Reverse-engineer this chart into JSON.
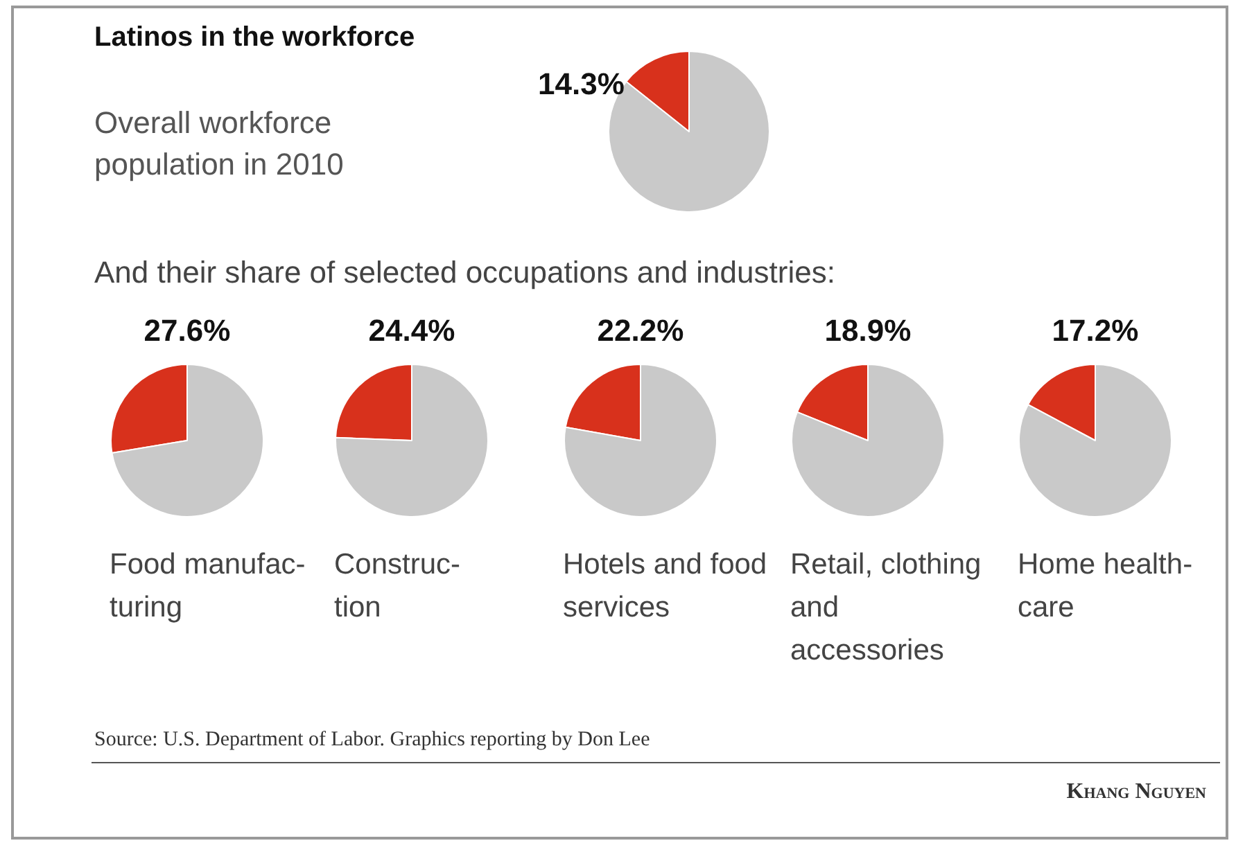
{
  "chart_data": [
    {
      "type": "pie",
      "title": "Latinos in the workforce",
      "subtitle": "Overall workforce population in 2010",
      "categories": [
        null,
        null
      ],
      "values": [
        14.3,
        85.7
      ],
      "colors": [
        "#d8311c",
        "#c9c9c9"
      ],
      "value_labels": [
        "14.3%",
        null
      ],
      "annotations": [
        "And their share of selected occupations and industries:"
      ]
    },
    {
      "type": "pie",
      "xlabel": "Food manufac-turing",
      "categories": [
        null,
        null
      ],
      "values": [
        27.6,
        72.4
      ],
      "colors": [
        "#d8311c",
        "#c9c9c9"
      ],
      "value_labels": [
        "27.6%",
        null
      ]
    },
    {
      "type": "pie",
      "xlabel": "Construc-tion",
      "categories": [
        null,
        null
      ],
      "values": [
        24.4,
        75.6
      ],
      "colors": [
        "#d8311c",
        "#c9c9c9"
      ],
      "value_labels": [
        "24.4%",
        null
      ]
    },
    {
      "type": "pie",
      "xlabel": "Hotels and food services",
      "categories": [
        null,
        null
      ],
      "values": [
        22.2,
        77.8
      ],
      "colors": [
        "#d8311c",
        "#c9c9c9"
      ],
      "value_labels": [
        "22.2%",
        null
      ]
    },
    {
      "type": "pie",
      "xlabel": "Retail, clothing and accessories",
      "categories": [
        null,
        null
      ],
      "values": [
        18.9,
        81.1
      ],
      "colors": [
        "#d8311c",
        "#c9c9c9"
      ],
      "value_labels": [
        "18.9%",
        null
      ]
    },
    {
      "type": "pie",
      "xlabel": "Home health-care",
      "categories": [
        null,
        null
      ],
      "values": [
        17.2,
        82.8
      ],
      "colors": [
        "#d8311c",
        "#c9c9c9"
      ],
      "value_labels": [
        "17.2%",
        null
      ],
      "annotations": [
        "Source: U.S. Department of Labor. Graphics reporting by Don Lee",
        "Khang Nguyen"
      ]
    }
  ]
}
